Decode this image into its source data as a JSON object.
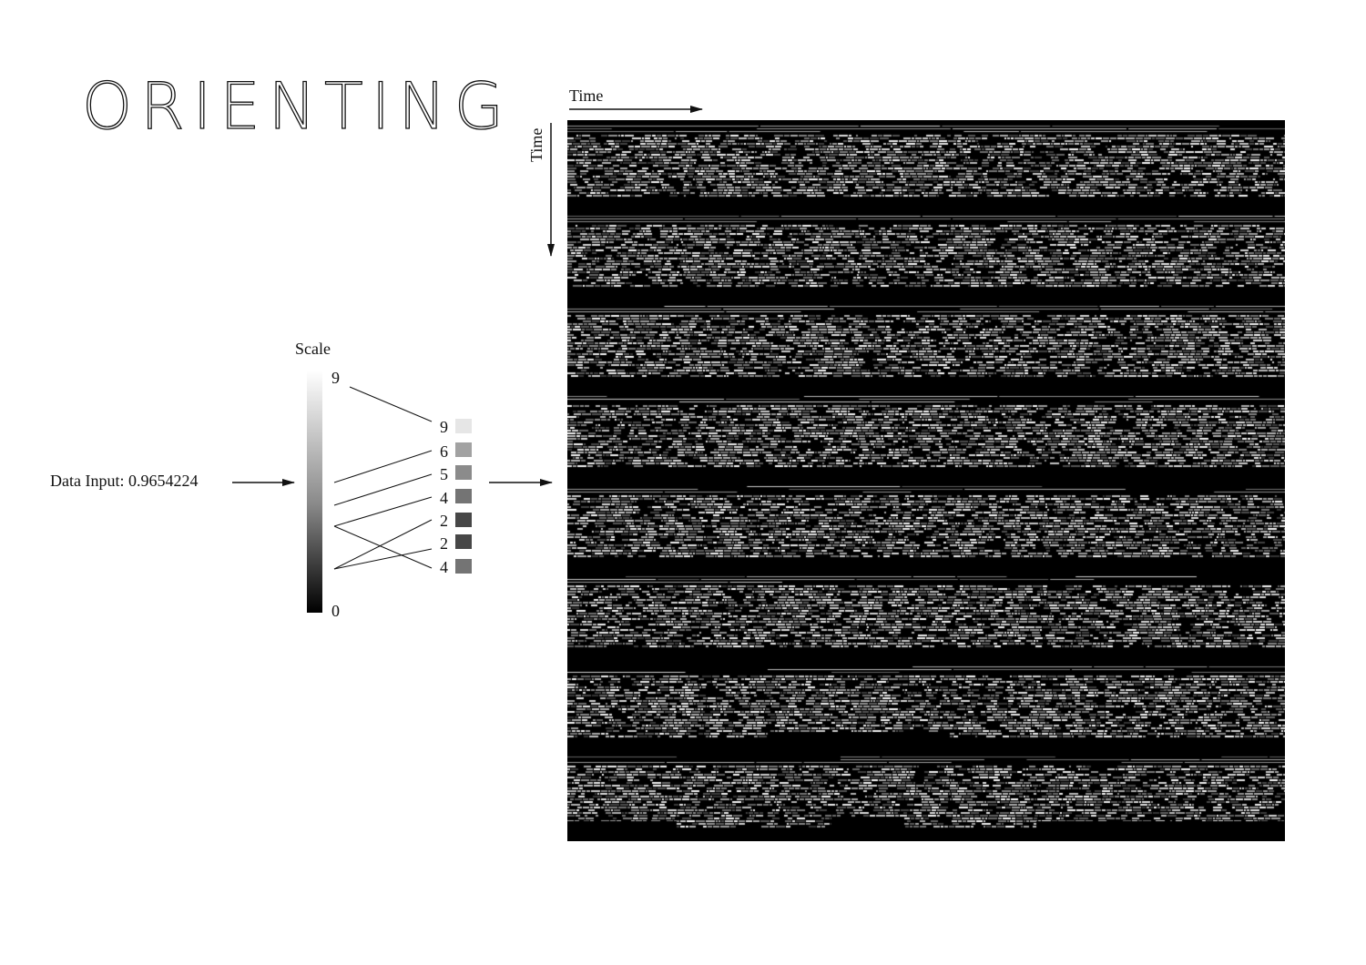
{
  "title": "ORIENTING",
  "data_input": "Data Input: 0.9654224",
  "scale": {
    "label": "Scale",
    "max_label": "9",
    "min_label": "0",
    "gradient_top_color": "#ffffff",
    "gradient_bottom_color": "#000000"
  },
  "outputs": [
    {
      "label": "9",
      "level": 9
    },
    {
      "label": "6",
      "level": 6
    },
    {
      "label": "5",
      "level": 5
    },
    {
      "label": "4",
      "level": 4
    },
    {
      "label": "2",
      "level": 2
    },
    {
      "label": "2",
      "level": 2
    },
    {
      "label": "4",
      "level": 4
    }
  ],
  "axes": {
    "x_label": "Time",
    "y_label": "Time"
  },
  "matrix": {
    "background_color": "#000000",
    "band_count": 8
  }
}
